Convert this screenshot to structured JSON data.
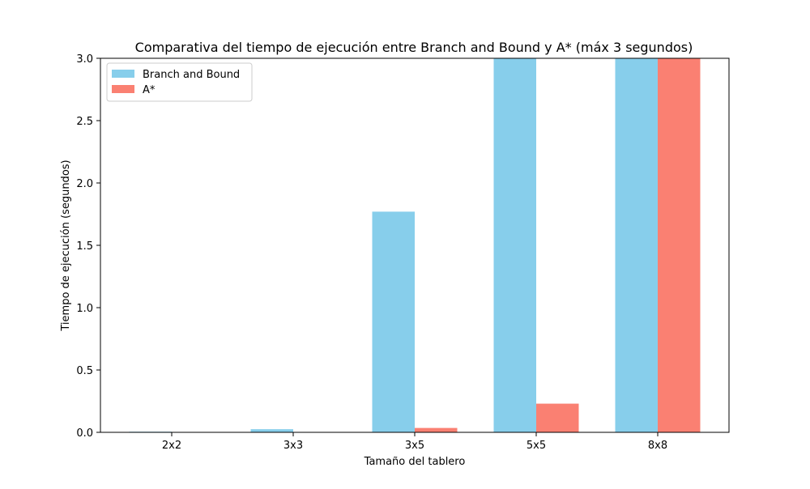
{
  "chart_data": {
    "type": "bar",
    "title": "Comparativa del tiempo de ejecución entre Branch and Bound y A* (máx 3 segundos)",
    "xlabel": "Tamaño del tablero",
    "ylabel": "Tiempo de ejecución (segundos)",
    "categories": [
      "2x2",
      "3x3",
      "3x5",
      "5x5",
      "8x8"
    ],
    "series": [
      {
        "name": "Branch and Bound",
        "color": "#87ceeb",
        "values": [
          0.005,
          0.025,
          1.77,
          3.0,
          3.0
        ]
      },
      {
        "name": "A*",
        "color": "#fa8072",
        "values": [
          0.001,
          0.002,
          0.035,
          0.23,
          3.0
        ]
      }
    ],
    "ylim": [
      0,
      3.0
    ],
    "yticks": [
      "0.0",
      "0.5",
      "1.0",
      "1.5",
      "2.0",
      "2.5",
      "3.0"
    ],
    "legend_position": "top-left",
    "grid": false
  }
}
